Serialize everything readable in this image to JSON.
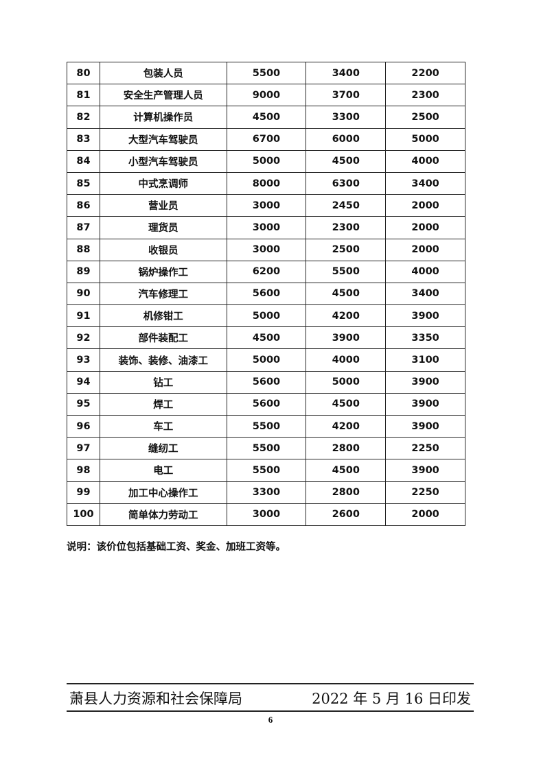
{
  "rows": [
    [
      "80",
      "包装人员",
      "5500",
      "3400",
      "2200"
    ],
    [
      "81",
      "安全生产管理人员",
      "9000",
      "3700",
      "2300"
    ],
    [
      "82",
      "计算机操作员",
      "4500",
      "3300",
      "2500"
    ],
    [
      "83",
      "大型汽车驾驶员",
      "6700",
      "6000",
      "5000"
    ],
    [
      "84",
      "小型汽车驾驶员",
      "5000",
      "4500",
      "4000"
    ],
    [
      "85",
      "中式烹调师",
      "8000",
      "6300",
      "3400"
    ],
    [
      "86",
      "营业员",
      "3000",
      "2450",
      "2000"
    ],
    [
      "87",
      "理货员",
      "3000",
      "2300",
      "2000"
    ],
    [
      "88",
      "收银员",
      "3000",
      "2500",
      "2000"
    ],
    [
      "89",
      "锅炉操作工",
      "6200",
      "5500",
      "4000"
    ],
    [
      "90",
      "汽车修理工",
      "5600",
      "4500",
      "3400"
    ],
    [
      "91",
      "机修钳工",
      "5000",
      "4200",
      "3900"
    ],
    [
      "92",
      "部件装配工",
      "4500",
      "3900",
      "3350"
    ],
    [
      "93",
      "装饰、装修、油漆工",
      "5000",
      "4000",
      "3100"
    ],
    [
      "94",
      "钻工",
      "5600",
      "5000",
      "3900"
    ],
    [
      "95",
      "焊工",
      "5600",
      "4500",
      "3900"
    ],
    [
      "96",
      "车工",
      "5500",
      "4200",
      "3900"
    ],
    [
      "97",
      "缝纫工",
      "5500",
      "2800",
      "2250"
    ],
    [
      "98",
      "电工",
      "5500",
      "4500",
      "3900"
    ],
    [
      "99",
      "加工中心操作工",
      "3300",
      "2800",
      "2250"
    ],
    [
      "100",
      "简单体力劳动工",
      "3000",
      "2600",
      "2000"
    ]
  ],
  "note": "说明：该价位包括基础工资、奖金、加班工资等。",
  "footer": {
    "issuer": "萧县人力资源和社会保障局",
    "date": "2022 年 5 月 16 日印发"
  },
  "page_number": "6"
}
